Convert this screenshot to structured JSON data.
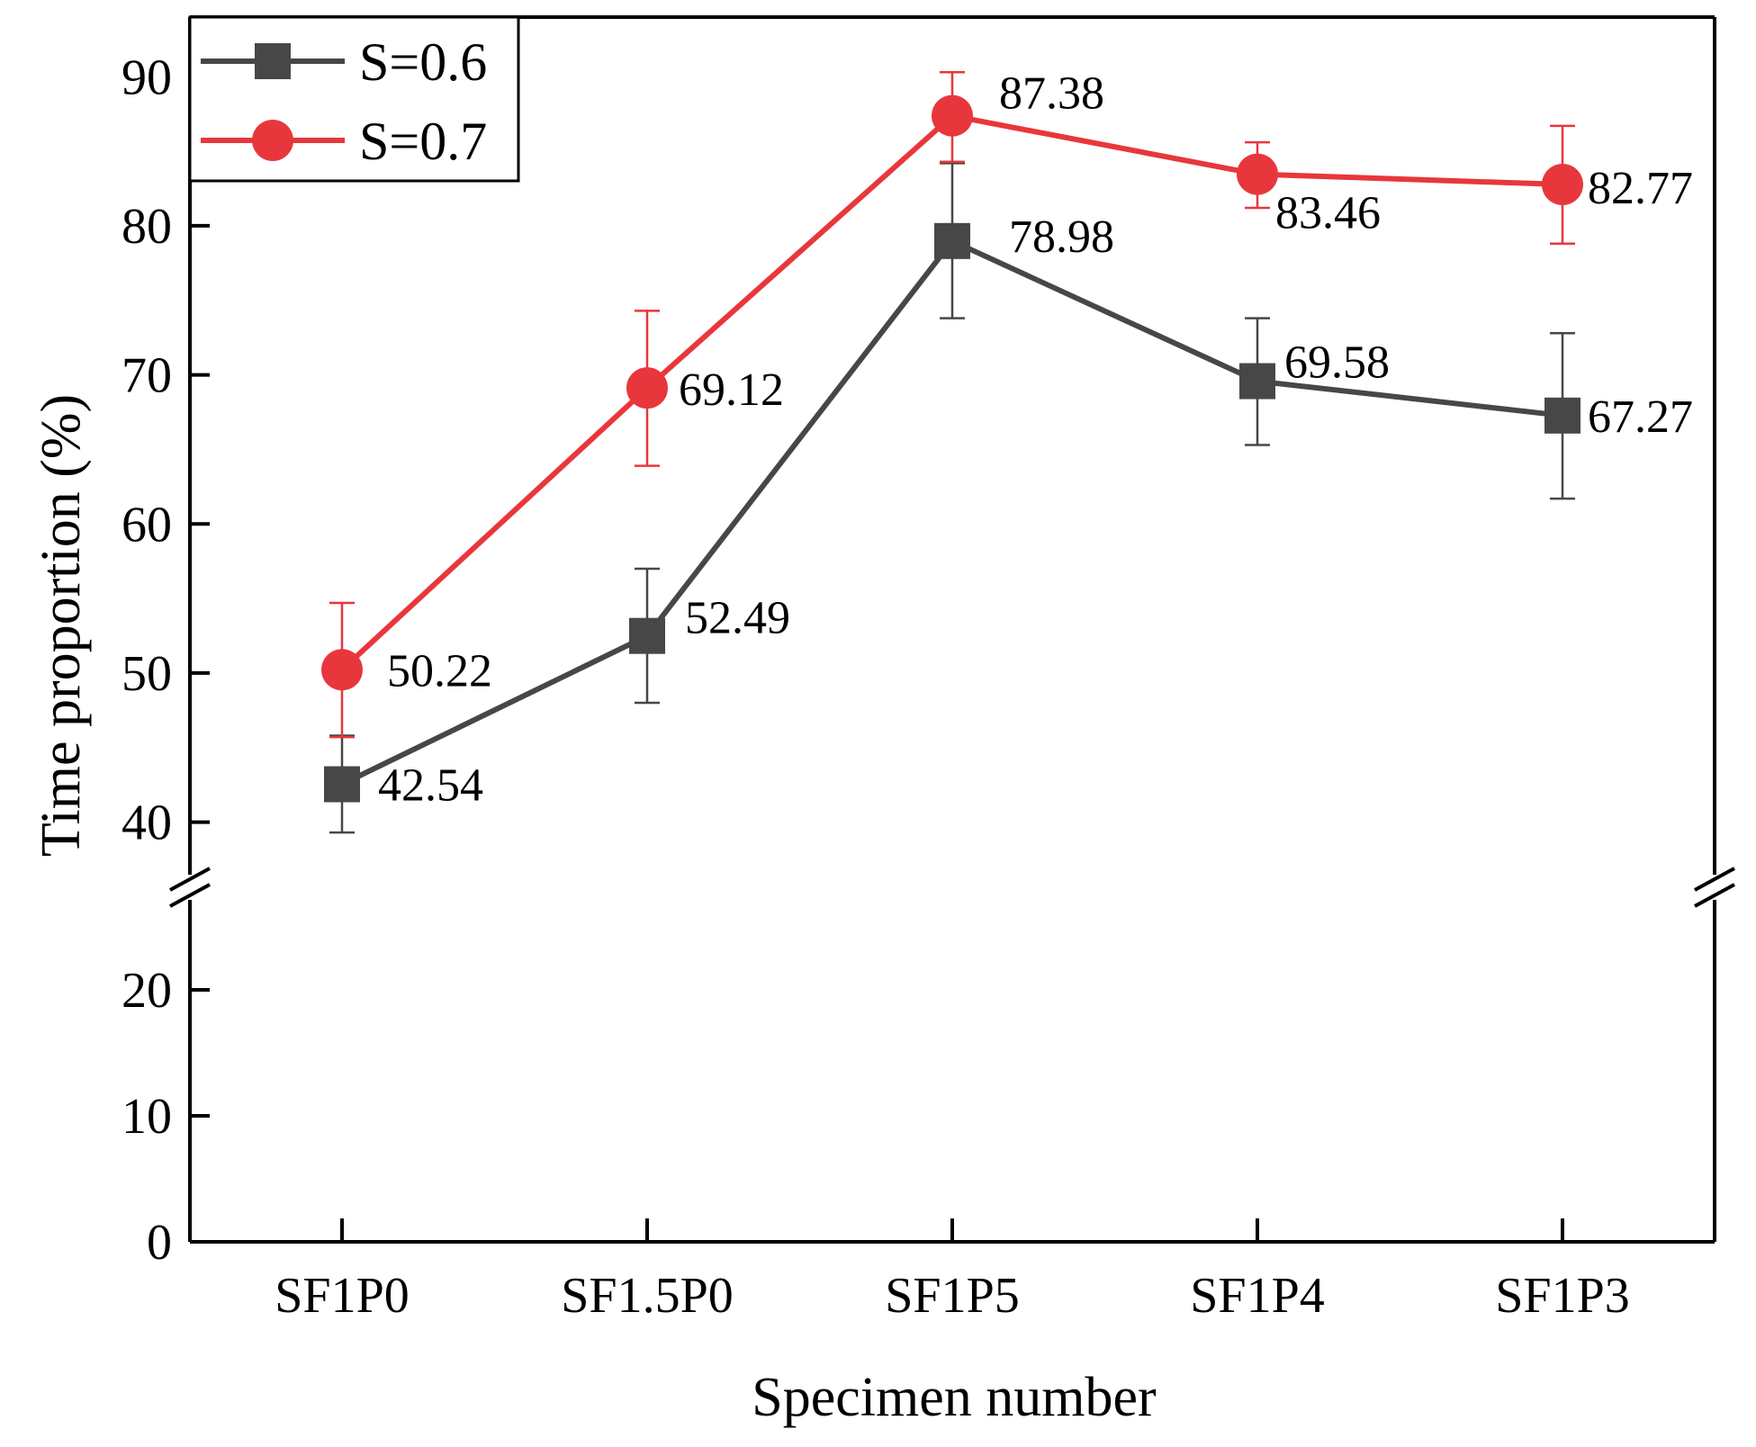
{
  "chart_data": {
    "type": "line",
    "title": "",
    "xlabel": "Specimen number",
    "ylabel": "Time proportion (%)",
    "categories": [
      "SF1P0",
      "SF1.5P0",
      "SF1P5",
      "SF1P4",
      "SF1P3"
    ],
    "y_axis": {
      "broken": true,
      "lower_range": [
        0,
        25
      ],
      "upper_range": [
        37.5,
        94
      ],
      "lower_ticks": [
        0,
        10,
        20
      ],
      "upper_ticks": [
        40,
        50,
        60,
        70,
        80,
        90
      ]
    },
    "legend_position": "top-left",
    "series": [
      {
        "name": "S=0.6",
        "color": "#474747",
        "marker": "square",
        "values": [
          42.54,
          52.49,
          78.98,
          69.58,
          67.27
        ],
        "error_low": [
          39.3,
          48.0,
          73.8,
          65.3,
          61.7
        ],
        "error_high": [
          45.8,
          57.0,
          84.2,
          73.8,
          72.8
        ],
        "labels": [
          "42.54",
          "52.49",
          "78.98",
          "69.58",
          "67.27"
        ]
      },
      {
        "name": "S=0.7",
        "color": "#e8373c",
        "marker": "circle",
        "values": [
          50.22,
          69.12,
          87.38,
          83.46,
          82.77
        ],
        "error_low": [
          45.7,
          63.9,
          84.3,
          81.2,
          78.8
        ],
        "error_high": [
          54.7,
          74.3,
          90.3,
          85.6,
          86.7
        ],
        "labels": [
          "50.22",
          "69.12",
          "87.38",
          "83.46",
          "82.77"
        ]
      }
    ]
  }
}
